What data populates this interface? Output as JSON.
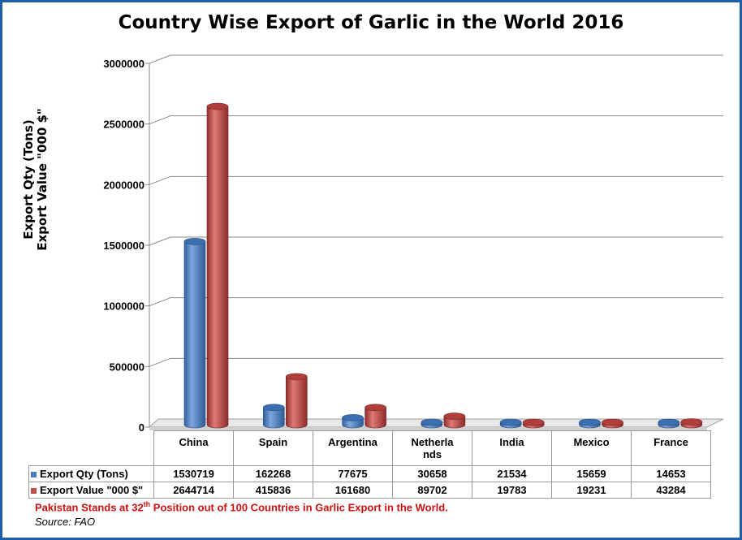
{
  "chart_data": {
    "type": "bar",
    "title": "Country Wise Export of Garlic in the World 2016",
    "ylabel": [
      "Export Qty (Tons)",
      "Export Value \"000 $\""
    ],
    "ylim": [
      0,
      3000000
    ],
    "yticks": [
      "0",
      "500000",
      "1000000",
      "1500000",
      "2000000",
      "2500000",
      "3000000"
    ],
    "categories": [
      "China",
      "Spain",
      "Argentina",
      "Netherla nds",
      "India",
      "Mexico",
      "France"
    ],
    "series": [
      {
        "name": "Export Qty (Tons)",
        "color": "#4a7ec0",
        "values": [
          1530719,
          162268,
          77675,
          30658,
          21534,
          15659,
          14653
        ]
      },
      {
        "name": "Export Value \"000 $\"",
        "color": "#c0504d",
        "values": [
          2644714,
          415836,
          161680,
          89702,
          19783,
          19231,
          43284
        ]
      }
    ],
    "grid": true,
    "legend": "data-table"
  },
  "table": {
    "categories": [
      [
        "China"
      ],
      [
        "Spain"
      ],
      [
        "Argentina"
      ],
      [
        "Netherla",
        "nds"
      ],
      [
        "India"
      ],
      [
        "Mexico"
      ],
      [
        "France"
      ]
    ],
    "rows": [
      {
        "label": "Export Qty (Tons)",
        "color": "#4a7ec0",
        "values": [
          "1530719",
          "162268",
          "77675",
          "30658",
          "21534",
          "15659",
          "14653"
        ]
      },
      {
        "label": "Export Value \"000 $\"",
        "color": "#c0504d",
        "values": [
          "2644714",
          "415836",
          "161680",
          "89702",
          "19783",
          "19231",
          "43284"
        ]
      }
    ]
  },
  "note": {
    "before": "Pakistan Stands at 32",
    "sup": "th",
    "after": " Position out of 100 Countries in Garlic Export in the World."
  },
  "source": "Source: FAO"
}
